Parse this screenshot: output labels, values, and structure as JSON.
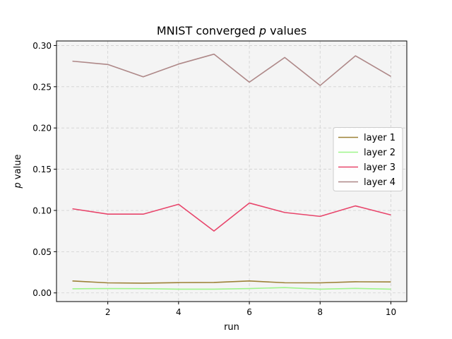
{
  "chart_data": {
    "type": "line",
    "title": "MNIST converged p values",
    "title_parts": {
      "before": "MNIST converged ",
      "italic": "p",
      "after": " values"
    },
    "xlabel": "run",
    "ylabel": "p value",
    "ylabel_parts": {
      "italic": "p",
      "after": " value"
    },
    "xlim": [
      0.55,
      10.45
    ],
    "ylim": [
      -0.0105,
      0.3055
    ],
    "xticks": [
      2,
      4,
      6,
      8,
      10
    ],
    "xtick_labels": [
      "2",
      "4",
      "6",
      "8",
      "10"
    ],
    "yticks": [
      0.0,
      0.05,
      0.1,
      0.15,
      0.2,
      0.25,
      0.3
    ],
    "ytick_labels": [
      "0.00",
      "0.05",
      "0.10",
      "0.15",
      "0.20",
      "0.25",
      "0.30"
    ],
    "grid": true,
    "legend_position": "center-right",
    "plot_background": "#f4f4f4",
    "grid_color": "#d0d0d0",
    "x": [
      1,
      2,
      3,
      4,
      5,
      6,
      7,
      8,
      9,
      10
    ],
    "series": [
      {
        "name": "layer 1",
        "color": "#9c8136",
        "values": [
          0.0145,
          0.0122,
          0.0118,
          0.0125,
          0.0127,
          0.0145,
          0.0123,
          0.0122,
          0.0135,
          0.0133
        ]
      },
      {
        "name": "layer 2",
        "color": "#9ef58a",
        "values": [
          0.005,
          0.0053,
          0.0052,
          0.0045,
          0.0045,
          0.0053,
          0.0065,
          0.0045,
          0.0055,
          0.0045
        ]
      },
      {
        "name": "layer 3",
        "color": "#e8456b",
        "values": [
          0.102,
          0.0955,
          0.0955,
          0.1075,
          0.075,
          0.109,
          0.0975,
          0.0928,
          0.1055,
          0.0945
        ]
      },
      {
        "name": "layer 4",
        "color": "#ae8888",
        "values": [
          0.281,
          0.277,
          0.262,
          0.2775,
          0.2895,
          0.2555,
          0.2855,
          0.2515,
          0.2875,
          0.2625
        ]
      }
    ]
  }
}
